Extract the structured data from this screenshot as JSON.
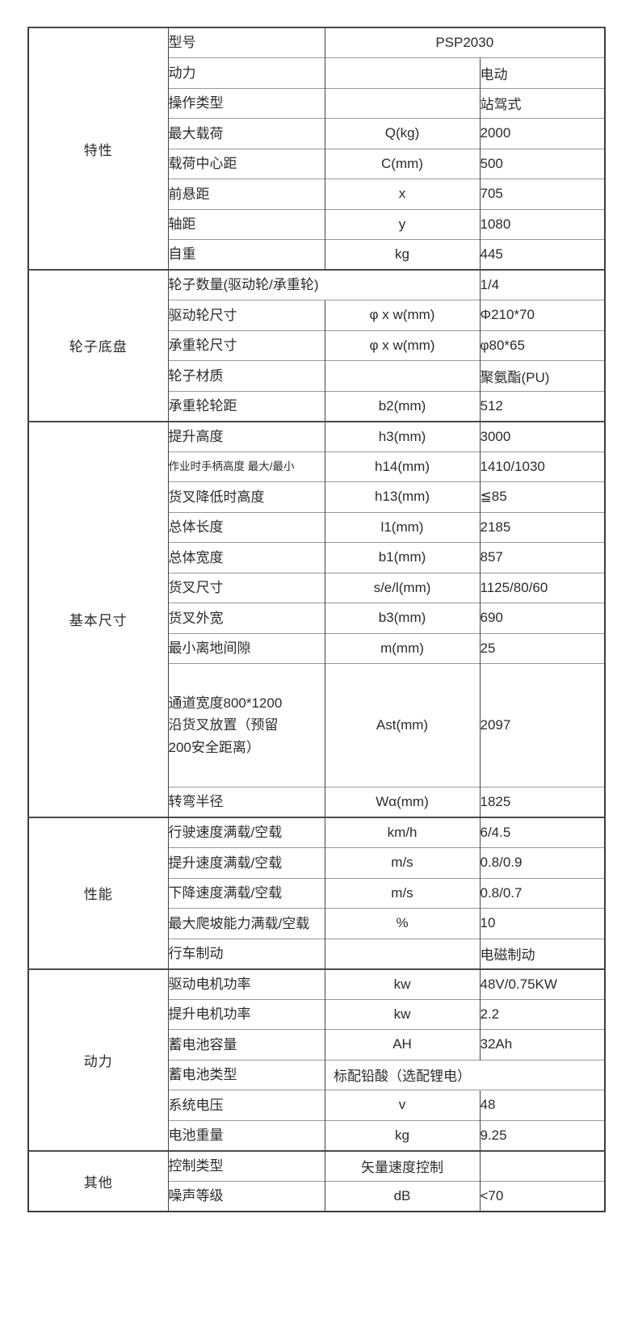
{
  "table": {
    "sections": [
      {
        "category": "特性",
        "rows": [
          {
            "name": "型号",
            "merged_symbol_value": "PSP2030"
          },
          {
            "name": "动力",
            "symbol": "",
            "value": "电动"
          },
          {
            "name": "操作类型",
            "symbol": "",
            "value": "站驾式"
          },
          {
            "name": "最大载荷",
            "symbol": "Q(kg)",
            "value": "2000"
          },
          {
            "name": "载荷中心距",
            "symbol": "C(mm)",
            "value": "500"
          },
          {
            "name": "前悬距",
            "symbol": "x",
            "value": "705"
          },
          {
            "name": "轴距",
            "symbol": "y",
            "value": "1080"
          },
          {
            "name": "自重",
            "symbol": "kg",
            "value": "445"
          }
        ]
      },
      {
        "category": "轮子底盘",
        "rows": [
          {
            "name": "轮子数量(驱动轮/承重轮)",
            "merge_name_symbol": true,
            "value": "1/4"
          },
          {
            "name": "驱动轮尺寸",
            "symbol": "φ x w(mm)",
            "value": "Φ210*70"
          },
          {
            "name": "承重轮尺寸",
            "symbol": "φ x w(mm)",
            "value": "φ80*65"
          },
          {
            "name": "轮子材质",
            "symbol": "",
            "value": "聚氨酯(PU)"
          },
          {
            "name": "承重轮轮距",
            "symbol": "b2(mm)",
            "value": "512"
          }
        ]
      },
      {
        "category": "基本尺寸",
        "rows": [
          {
            "name": "提升高度",
            "symbol": "h3(mm)",
            "value": "3000"
          },
          {
            "name": "作业时手柄高度 最大/最小",
            "small": true,
            "symbol": "h14(mm)",
            "value": "1410/1030"
          },
          {
            "name": "货叉降低时高度",
            "symbol": "h13(mm)",
            "value": "≦85"
          },
          {
            "name": "总体长度",
            "symbol": "l1(mm)",
            "value": "2185"
          },
          {
            "name": "总体宽度",
            "symbol": "b1(mm)",
            "value": "857"
          },
          {
            "name": "货叉尺寸",
            "symbol": "s/e/l(mm)",
            "value": "1125/80/60"
          },
          {
            "name": "货叉外宽",
            "symbol": "b3(mm)",
            "value": "690"
          },
          {
            "name": "最小离地间隙",
            "symbol": "m(mm)",
            "value": "25"
          },
          {
            "name": "通道宽度800*1200\n沿货叉放置（预留\n200安全距离）",
            "tall": true,
            "symbol": "Ast(mm)",
            "value": "2097"
          },
          {
            "name": "转弯半径",
            "symbol": "Wα(mm)",
            "value": "1825"
          }
        ]
      },
      {
        "category": "性能",
        "rows": [
          {
            "name": "行驶速度满载/空载",
            "symbol": "km/h",
            "value": "6/4.5"
          },
          {
            "name": "提升速度满载/空载",
            "symbol": "m/s",
            "value": "0.8/0.9"
          },
          {
            "name": "下降速度满载/空载",
            "symbol": "m/s",
            "value": "0.8/0.7"
          },
          {
            "name": "最大爬坡能力满载/空载",
            "symbol": "%",
            "value": "10"
          },
          {
            "name": "行车制动",
            "symbol": "",
            "value": "电磁制动"
          }
        ]
      },
      {
        "category": "动力",
        "rows": [
          {
            "name": "驱动电机功率",
            "symbol": "kw",
            "value": "48V/0.75KW"
          },
          {
            "name": "提升电机功率",
            "symbol": "kw",
            "value": "2.2"
          },
          {
            "name": "蓄电池容量",
            "symbol": "AH",
            "value": "32Ah"
          },
          {
            "name": "蓄电池类型",
            "symbol": "标配铅酸（选配锂电）",
            "value": "",
            "no_divider": true
          },
          {
            "name": "系统电压",
            "symbol": "v",
            "value": "48"
          },
          {
            "name": "电池重量",
            "symbol": "kg",
            "value": "9.25"
          }
        ]
      },
      {
        "category": "其他",
        "rows": [
          {
            "name": "控制类型",
            "symbol": "矢量速度控制",
            "value": ""
          },
          {
            "name": "噪声等级",
            "symbol": "dB",
            "value": "<70"
          }
        ]
      }
    ]
  }
}
